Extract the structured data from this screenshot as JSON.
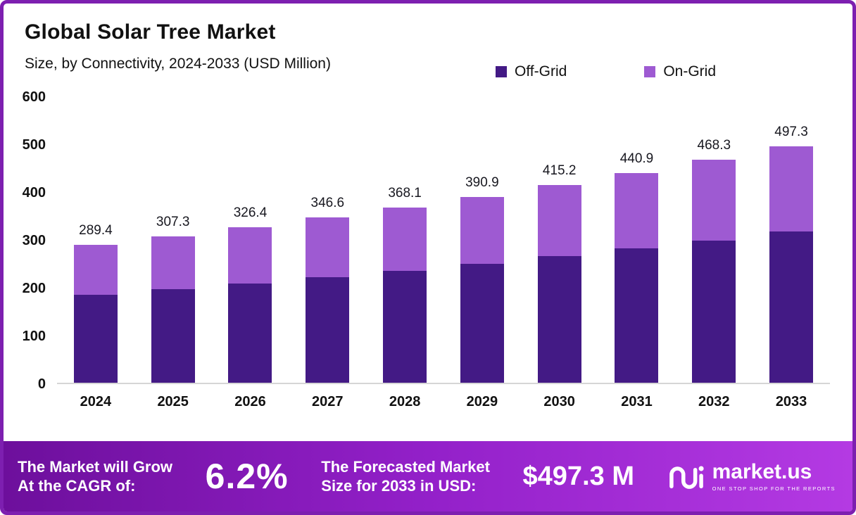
{
  "chart_data": {
    "type": "bar",
    "stacked": true,
    "title": "Global Solar Tree Market",
    "subtitle": "Size, by Connectivity, 2024-2033 (USD Million)",
    "categories": [
      "2024",
      "2025",
      "2026",
      "2027",
      "2028",
      "2029",
      "2030",
      "2031",
      "2032",
      "2033"
    ],
    "series": [
      {
        "name": "Off-Grid",
        "color": "#431a85",
        "values": [
          185.0,
          196.5,
          208.6,
          221.5,
          235.2,
          249.8,
          265.3,
          281.7,
          299.2,
          317.7
        ]
      },
      {
        "name": "On-Grid",
        "color": "#9e5ad2",
        "values": [
          104.4,
          110.8,
          117.8,
          125.1,
          132.9,
          141.1,
          149.9,
          159.2,
          169.1,
          179.6
        ]
      }
    ],
    "totals": [
      "289.4",
      "307.3",
      "326.4",
      "346.6",
      "368.1",
      "390.9",
      "415.2",
      "440.9",
      "468.3",
      "497.3"
    ],
    "ylim": [
      0,
      600
    ],
    "yticks": [
      "600",
      "500",
      "400",
      "300",
      "200",
      "100",
      "0"
    ],
    "legend_position": "top",
    "grid": false
  },
  "footer": {
    "cagr_line1": "The Market will Grow",
    "cagr_line2": "At the CAGR of:",
    "cagr_value": "6.2%",
    "forecast_line1": "The Forecasted Market",
    "forecast_line2": "Size for 2033 in USD:",
    "forecast_value": "$497.3 M",
    "brand": "market.us",
    "brand_tagline": "ONE STOP SHOP FOR THE REPORTS"
  },
  "colors": {
    "frame_border": "#7d1fb0",
    "footer_gradient_start": "#6d0f9c",
    "footer_gradient_end": "#b43ae3",
    "off_grid": "#431a85",
    "on_grid": "#9e5ad2"
  }
}
